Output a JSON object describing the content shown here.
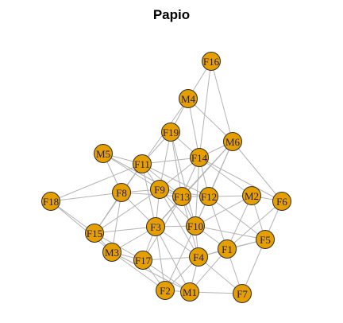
{
  "title": "Papio",
  "colors": {
    "node_fill": "#E69F00",
    "node_stroke": "#2e2e2e",
    "edge": "#b4b4b4",
    "label": "#1a1a6e"
  },
  "nodes": [
    {
      "id": "F16"
    },
    {
      "id": "M4"
    },
    {
      "id": "F19"
    },
    {
      "id": "M6"
    },
    {
      "id": "M5"
    },
    {
      "id": "F11"
    },
    {
      "id": "F14"
    },
    {
      "id": "F9"
    },
    {
      "id": "F8"
    },
    {
      "id": "F13"
    },
    {
      "id": "F12"
    },
    {
      "id": "M2"
    },
    {
      "id": "F6"
    },
    {
      "id": "F18"
    },
    {
      "id": "F10"
    },
    {
      "id": "F3"
    },
    {
      "id": "F15"
    },
    {
      "id": "F5"
    },
    {
      "id": "F1"
    },
    {
      "id": "M3"
    },
    {
      "id": "F4"
    },
    {
      "id": "F17"
    },
    {
      "id": "F2"
    },
    {
      "id": "M1"
    },
    {
      "id": "F7"
    }
  ],
  "edges": [
    [
      "F16",
      "M4"
    ],
    [
      "F16",
      "F14"
    ],
    [
      "F16",
      "M6"
    ],
    [
      "M4",
      "F19"
    ],
    [
      "M4",
      "F11"
    ],
    [
      "M4",
      "M6"
    ],
    [
      "M4",
      "F14"
    ],
    [
      "F19",
      "F14"
    ],
    [
      "F19",
      "F11"
    ],
    [
      "F19",
      "F9"
    ],
    [
      "F19",
      "F13"
    ],
    [
      "F19",
      "F10"
    ],
    [
      "M6",
      "F14"
    ],
    [
      "M6",
      "F12"
    ],
    [
      "M6",
      "F13"
    ],
    [
      "M6",
      "F6"
    ],
    [
      "M6",
      "F3"
    ],
    [
      "M6",
      "F10"
    ],
    [
      "M5",
      "F11"
    ],
    [
      "M5",
      "F8"
    ],
    [
      "M5",
      "F9"
    ],
    [
      "M5",
      "F13"
    ],
    [
      "F11",
      "F14"
    ],
    [
      "F11",
      "F9"
    ],
    [
      "F11",
      "F8"
    ],
    [
      "F11",
      "F13"
    ],
    [
      "F11",
      "F3"
    ],
    [
      "F11",
      "F15"
    ],
    [
      "F11",
      "F12"
    ],
    [
      "F14",
      "F9"
    ],
    [
      "F14",
      "F13"
    ],
    [
      "F14",
      "F12"
    ],
    [
      "F14",
      "M2"
    ],
    [
      "F14",
      "F6"
    ],
    [
      "F14",
      "F10"
    ],
    [
      "F9",
      "F13"
    ],
    [
      "F9",
      "F8"
    ],
    [
      "F9",
      "F3"
    ],
    [
      "F9",
      "F10"
    ],
    [
      "F9",
      "F4"
    ],
    [
      "F9",
      "F12"
    ],
    [
      "F8",
      "F18"
    ],
    [
      "F8",
      "F15"
    ],
    [
      "F8",
      "F3"
    ],
    [
      "F8",
      "M3"
    ],
    [
      "F8",
      "F13"
    ],
    [
      "F13",
      "F12"
    ],
    [
      "F13",
      "F10"
    ],
    [
      "F13",
      "F3"
    ],
    [
      "F13",
      "F4"
    ],
    [
      "F13",
      "F17"
    ],
    [
      "F12",
      "M2"
    ],
    [
      "F12",
      "F10"
    ],
    [
      "F12",
      "F5"
    ],
    [
      "F12",
      "F1"
    ],
    [
      "M2",
      "F6"
    ],
    [
      "M2",
      "F5"
    ],
    [
      "M2",
      "F1"
    ],
    [
      "M2",
      "F10"
    ],
    [
      "F6",
      "F5"
    ],
    [
      "F6",
      "F1"
    ],
    [
      "F18",
      "F15"
    ],
    [
      "F18",
      "M3"
    ],
    [
      "F18",
      "F11"
    ],
    [
      "F10",
      "F3"
    ],
    [
      "F10",
      "F4"
    ],
    [
      "F10",
      "F1"
    ],
    [
      "F10",
      "F5"
    ],
    [
      "F10",
      "F2"
    ],
    [
      "F3",
      "F15"
    ],
    [
      "F3",
      "M3"
    ],
    [
      "F3",
      "F17"
    ],
    [
      "F3",
      "F2"
    ],
    [
      "F3",
      "M1"
    ],
    [
      "F3",
      "F4"
    ],
    [
      "F15",
      "M3"
    ],
    [
      "F15",
      "F17"
    ],
    [
      "F15",
      "F9"
    ],
    [
      "F5",
      "F1"
    ],
    [
      "F5",
      "F4"
    ],
    [
      "F5",
      "F7"
    ],
    [
      "F1",
      "F4"
    ],
    [
      "F1",
      "M1"
    ],
    [
      "F1",
      "F7"
    ],
    [
      "M3",
      "F17"
    ],
    [
      "M3",
      "F2"
    ],
    [
      "M3",
      "M1"
    ],
    [
      "F4",
      "F2"
    ],
    [
      "F4",
      "M1"
    ],
    [
      "F4",
      "F7"
    ],
    [
      "F4",
      "F17"
    ],
    [
      "F17",
      "F2"
    ],
    [
      "F2",
      "M1"
    ],
    [
      "M1",
      "F7"
    ],
    [
      "F17",
      "M1"
    ]
  ]
}
